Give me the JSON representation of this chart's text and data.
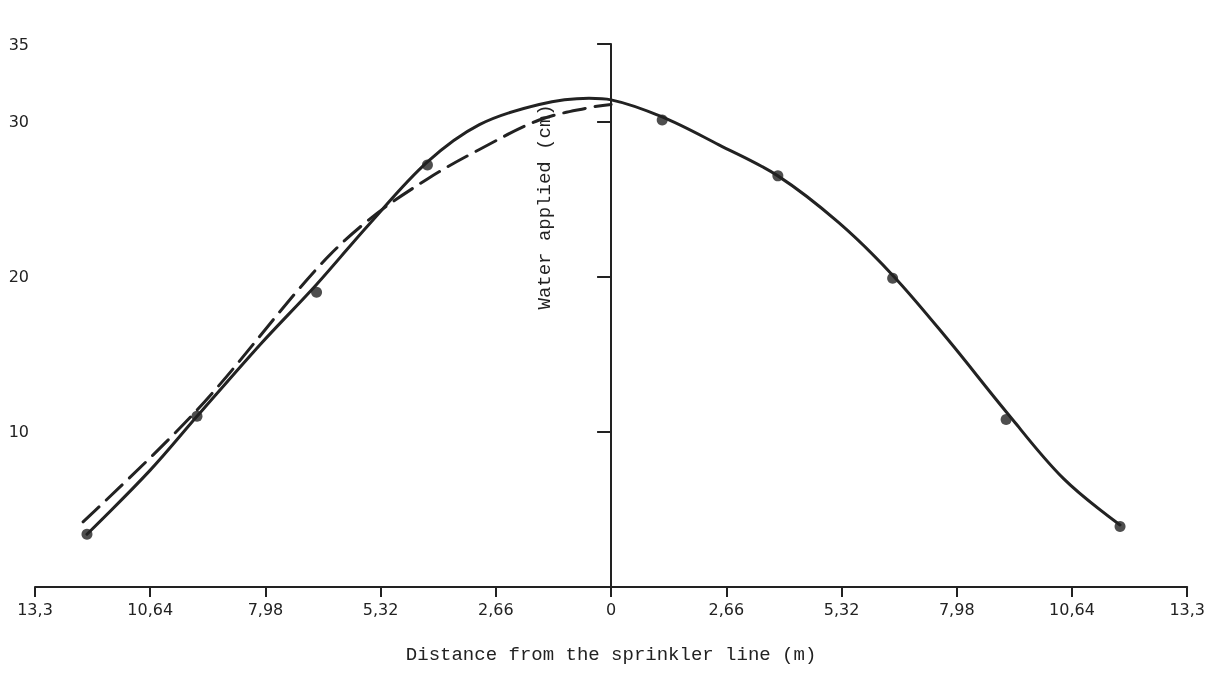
{
  "chart_data": {
    "type": "line",
    "xlabel": "Distance from the sprinkler line (m)",
    "ylabel": "Water applied (cm)",
    "xlim": [
      -13.3,
      13.3
    ],
    "xticks": [
      {
        "value": -13.3,
        "label": "13,3"
      },
      {
        "value": -10.64,
        "label": "10,64"
      },
      {
        "value": -7.98,
        "label": "7,98"
      },
      {
        "value": -5.32,
        "label": "5,32"
      },
      {
        "value": -2.66,
        "label": "2,66"
      },
      {
        "value": 0,
        "label": "0"
      },
      {
        "value": 2.66,
        "label": "2,66"
      },
      {
        "value": 5.32,
        "label": "5,32"
      },
      {
        "value": 7.98,
        "label": "7,98"
      },
      {
        "value": 10.64,
        "label": "10,64"
      },
      {
        "value": 13.3,
        "label": "13,3"
      }
    ],
    "ylim": [
      0,
      35
    ],
    "yticks": [
      10,
      20,
      30,
      35
    ],
    "series": [
      {
        "type": "scatter",
        "marker": "circle",
        "color": "#222222",
        "x": [
          -12.1,
          -9.56,
          -6.8,
          -4.24,
          1.18,
          3.85,
          6.5,
          9.12,
          11.75
        ],
        "values": [
          3.4,
          11.0,
          19.0,
          27.2,
          30.1,
          26.5,
          19.9,
          10.8,
          3.9
        ]
      },
      {
        "marker": "none",
        "line_style": "solid",
        "color": "#222222",
        "x": [
          -12.1,
          -10.65,
          -9.56,
          -8.11,
          -6.8,
          -5.58,
          -4.24,
          -3.04,
          -1.66,
          -0.51,
          0,
          1.18,
          2.49,
          3.85,
          5.25,
          6.5,
          7.79,
          9.12,
          10.44,
          11.75
        ],
        "values": [
          3.4,
          7.5,
          11.0,
          15.6,
          19.5,
          23.4,
          27.4,
          29.8,
          31.1,
          31.5,
          31.4,
          30.3,
          28.5,
          26.5,
          23.5,
          20.1,
          15.9,
          11.3,
          7.0,
          4.0
        ]
      },
      {
        "marker": "none",
        "line_style": "dashed",
        "color": "#222222",
        "x": [
          -12.19,
          -9.56,
          -6.8,
          -5.58,
          -4.24,
          -3.04,
          -1.66,
          -0.51,
          0
        ],
        "values": [
          4.2,
          11.4,
          20.5,
          23.7,
          26.3,
          28.2,
          30.1,
          30.9,
          31.1
        ]
      }
    ]
  }
}
